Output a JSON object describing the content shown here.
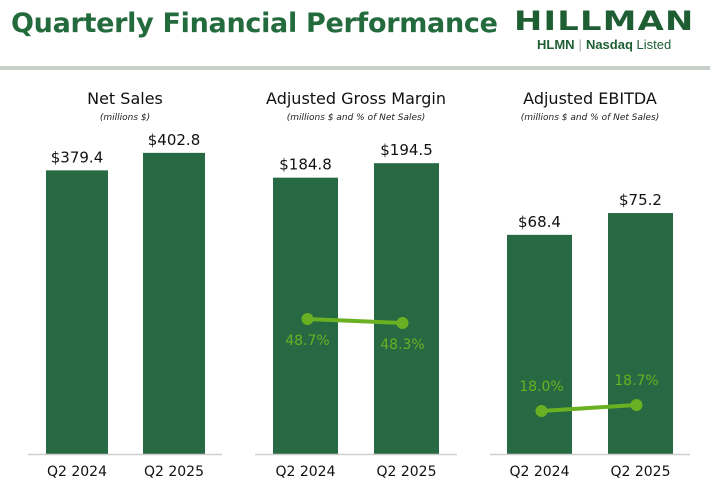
{
  "header": {
    "title": "Quarterly Financial Performance",
    "logo": {
      "name": "HILLMAN",
      "ticker": "HLMN",
      "separator": "|",
      "exchange_bold": "Nasdaq",
      "exchange_light": "Listed"
    }
  },
  "colors": {
    "bar": "#276942",
    "line": "#6ab023",
    "title": "#236b3c",
    "axis": "#cfcfcf"
  },
  "chart_data": [
    {
      "type": "bar",
      "title": "Net Sales",
      "subtitle": "(millions $)",
      "categories": [
        "Q2 2024",
        "Q2 2025"
      ],
      "values": [
        379.4,
        402.8
      ],
      "value_labels": [
        "$379.4",
        "$402.8"
      ],
      "ylim": [
        0,
        420
      ],
      "grid": false
    },
    {
      "type": "bar",
      "title": "Adjusted Gross Margin",
      "subtitle": "(millions $ and % of Net Sales)",
      "categories": [
        "Q2 2024",
        "Q2 2025"
      ],
      "values": [
        184.8,
        194.5
      ],
      "value_labels": [
        "$184.8",
        "$194.5"
      ],
      "ylim": [
        0,
        210
      ],
      "grid": false,
      "line_series": {
        "name": "% of Net Sales",
        "values": [
          48.7,
          48.3
        ],
        "labels": [
          "48.7%",
          "48.3%"
        ],
        "label_position": "below"
      }
    },
    {
      "type": "bar",
      "title": "Adjusted EBITDA",
      "subtitle": "(millions $ and % of Net Sales)",
      "categories": [
        "Q2 2024",
        "Q2 2025"
      ],
      "values": [
        68.4,
        75.2
      ],
      "value_labels": [
        "$68.4",
        "$75.2"
      ],
      "ylim": [
        0,
        98
      ],
      "grid": false,
      "line_series": {
        "name": "% of Net Sales",
        "values": [
          18.0,
          18.7
        ],
        "labels": [
          "18.0%",
          "18.7%"
        ],
        "label_position": "above"
      }
    }
  ]
}
